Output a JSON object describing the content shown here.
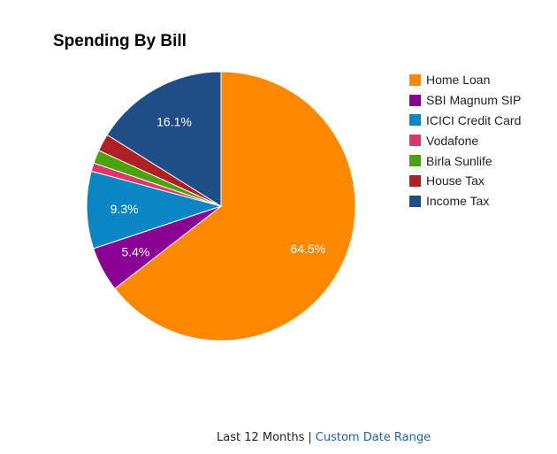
{
  "chart_data": {
    "type": "pie",
    "title": "Spending By Bill",
    "categories": [
      "Home Loan",
      "SBI Magnum SIP",
      "ICICI Credit Card",
      "Vodafone",
      "Birla Sunlife",
      "House Tax",
      "Income Tax"
    ],
    "values": [
      64.5,
      5.4,
      9.3,
      1.0,
      1.6,
      2.1,
      16.1
    ],
    "colors": [
      "#ff8800",
      "#8b0095",
      "#0b86c4",
      "#e0346c",
      "#4da10b",
      "#b01f25",
      "#1f4e87"
    ],
    "data_labels": [
      "64.5%",
      "5.4%",
      "9.3%",
      "",
      "",
      "",
      "16.1%"
    ],
    "unit": "%",
    "start_angle": "top (12 o'clock), clockwise",
    "legend_position": "right"
  },
  "legend": {
    "items": [
      {
        "label": "Home Loan",
        "color": "#ff8800"
      },
      {
        "label": "SBI Magnum SIP",
        "color": "#8b0095"
      },
      {
        "label": "ICICI Credit Card",
        "color": "#0b86c4"
      },
      {
        "label": "Vodafone",
        "color": "#e0346c"
      },
      {
        "label": "Birla Sunlife",
        "color": "#4da10b"
      },
      {
        "label": "House Tax",
        "color": "#b01f25"
      },
      {
        "label": "Income Tax",
        "color": "#1f4e87"
      }
    ]
  },
  "footer": {
    "active_range": "Last 12 Months",
    "separator": "|",
    "custom_range_link": "Custom Date Range"
  }
}
